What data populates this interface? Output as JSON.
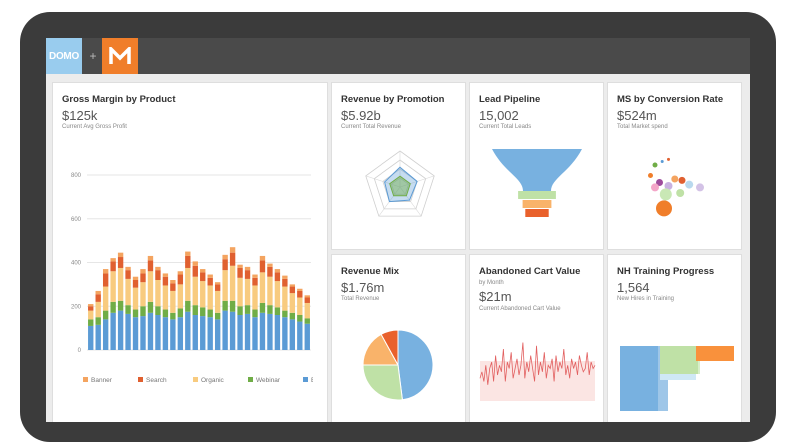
{
  "brand": {
    "domo_label": "DOMO",
    "plus": "+",
    "m_label": "M"
  },
  "cards": {
    "gross_margin": {
      "title": "Gross Margin by Product",
      "value": "$125k",
      "subtitle": "Current Avg Gross Profit"
    },
    "revenue_promotion": {
      "title": "Revenue by Promotion",
      "value": "$5.92b",
      "subtitle": "Current Total Revenue"
    },
    "lead_pipeline": {
      "title": "Lead Pipeline",
      "value": "15,002",
      "subtitle": "Current Total Leads"
    },
    "ms_conversion": {
      "title": "MS by Conversion Rate",
      "value": "$524m",
      "subtitle": "Total Market spend"
    },
    "revenue_mix": {
      "title": "Revenue Mix",
      "value": "$1.76m",
      "subtitle": "Total Revenue"
    },
    "abandoned_cart": {
      "title": "Abandoned Cart Value",
      "by": "by Month",
      "value": "$21m",
      "subtitle": "Current Abandoned Cart Value"
    },
    "nh_training": {
      "title": "NH Training Progress",
      "value": "1,564",
      "subtitle": "New Hires in Training"
    }
  },
  "chart_data": [
    {
      "type": "bar",
      "stacked": true,
      "ylim": [
        0,
        800
      ],
      "yticks": [
        "0",
        "200",
        "400",
        "600",
        "800"
      ],
      "grid": true,
      "legend": "bottom",
      "series": [
        {
          "name": "Email",
          "color": "#5b9bd5",
          "values": [
            110,
            115,
            140,
            170,
            180,
            165,
            150,
            155,
            170,
            160,
            150,
            140,
            150,
            175,
            160,
            155,
            150,
            140,
            180,
            175,
            160,
            165,
            150,
            170,
            165,
            160,
            150,
            140,
            130,
            120
          ]
        },
        {
          "name": "Webinar",
          "color": "#70ad47",
          "values": [
            30,
            35,
            40,
            50,
            45,
            40,
            35,
            45,
            50,
            40,
            35,
            30,
            40,
            50,
            45,
            40,
            35,
            30,
            45,
            50,
            40,
            40,
            35,
            45,
            40,
            35,
            30,
            30,
            30,
            25
          ]
        },
        {
          "name": "Organic",
          "color": "#f8cb7f",
          "values": [
            40,
            70,
            110,
            140,
            150,
            120,
            100,
            110,
            140,
            120,
            110,
            100,
            110,
            150,
            130,
            120,
            110,
            100,
            140,
            160,
            130,
            120,
            110,
            140,
            130,
            120,
            110,
            90,
            80,
            70
          ]
        },
        {
          "name": "Search",
          "color": "#e06030",
          "values": [
            20,
            35,
            60,
            45,
            50,
            40,
            35,
            40,
            50,
            45,
            40,
            35,
            45,
            55,
            50,
            40,
            35,
            30,
            50,
            60,
            45,
            40,
            35,
            55,
            45,
            40,
            35,
            30,
            30,
            25
          ]
        },
        {
          "name": "Banner",
          "color": "#f4a460",
          "values": [
            10,
            15,
            20,
            15,
            20,
            15,
            15,
            20,
            20,
            15,
            15,
            15,
            15,
            20,
            20,
            15,
            15,
            10,
            20,
            25,
            15,
            15,
            15,
            20,
            15,
            15,
            15,
            10,
            10,
            10
          ]
        }
      ]
    },
    {
      "type": "radar",
      "axes": 5,
      "series": [
        {
          "values": [
            0.55,
            0.5,
            0.45,
            0.5,
            0.45
          ]
        },
        {
          "values": [
            0.3,
            0.3,
            0.3,
            0.3,
            0.3
          ]
        }
      ]
    },
    {
      "type": "funnel",
      "stages": [
        {
          "value": 1.0,
          "color": "#78b1e0"
        },
        {
          "value": 0.42,
          "color": "#bfe1a6"
        },
        {
          "value": 0.32,
          "color": "#f9b36a"
        },
        {
          "value": 0.26,
          "color": "#e9612c"
        }
      ]
    },
    {
      "type": "scatter",
      "points": [
        {
          "x": 0.3,
          "y": 0.3,
          "r": 2.5,
          "color": "#70ad47"
        },
        {
          "x": 0.38,
          "y": 0.25,
          "r": 1.5,
          "color": "#5b9bd5"
        },
        {
          "x": 0.45,
          "y": 0.22,
          "r": 1.5,
          "color": "#e06030"
        },
        {
          "x": 0.25,
          "y": 0.45,
          "r": 2.5,
          "color": "#f07e2a"
        },
        {
          "x": 0.35,
          "y": 0.55,
          "r": 3.5,
          "color": "#9e4c9c"
        },
        {
          "x": 0.3,
          "y": 0.62,
          "r": 4,
          "color": "#f4a6c8"
        },
        {
          "x": 0.45,
          "y": 0.6,
          "r": 4,
          "color": "#c9b2e0"
        },
        {
          "x": 0.52,
          "y": 0.5,
          "r": 3.5,
          "color": "#f4a460"
        },
        {
          "x": 0.6,
          "y": 0.52,
          "r": 3.5,
          "color": "#e06030"
        },
        {
          "x": 0.68,
          "y": 0.58,
          "r": 4,
          "color": "#b9d9ee"
        },
        {
          "x": 0.58,
          "y": 0.7,
          "r": 4,
          "color": "#bfe1a6"
        },
        {
          "x": 0.8,
          "y": 0.62,
          "r": 4,
          "color": "#d3c2e6"
        },
        {
          "x": 0.42,
          "y": 0.72,
          "r": 6,
          "color": "#c9e8b5"
        },
        {
          "x": 0.4,
          "y": 0.92,
          "r": 8,
          "color": "#f07e2a"
        }
      ]
    },
    {
      "type": "pie",
      "slices": [
        {
          "value": 48,
          "color": "#78b1e0"
        },
        {
          "value": 27,
          "color": "#bfe1a6"
        },
        {
          "value": 17,
          "color": "#f9b36a"
        },
        {
          "value": 8,
          "color": "#e9612c"
        }
      ]
    },
    {
      "type": "line",
      "color": "#e26060",
      "values": [
        0.35,
        0.45,
        0.3,
        0.55,
        0.25,
        0.5,
        0.6,
        0.3,
        0.7,
        0.4,
        0.55,
        0.45,
        0.8,
        0.3,
        0.6,
        0.5,
        0.75,
        0.35,
        0.5,
        0.65,
        0.4,
        0.55,
        0.9,
        0.35,
        0.6,
        0.45,
        0.7,
        0.5,
        0.3,
        0.85,
        0.4,
        0.6,
        0.45,
        0.75,
        0.35,
        0.55,
        0.5,
        0.65,
        0.3,
        0.7,
        0.45,
        0.6,
        0.5,
        0.8,
        0.4,
        0.55,
        0.35,
        0.65,
        0.5,
        0.6,
        0.4,
        0.7,
        0.55,
        0.45,
        0.5,
        0.75,
        0.4,
        0.6,
        0.5,
        0.55
      ]
    }
  ]
}
